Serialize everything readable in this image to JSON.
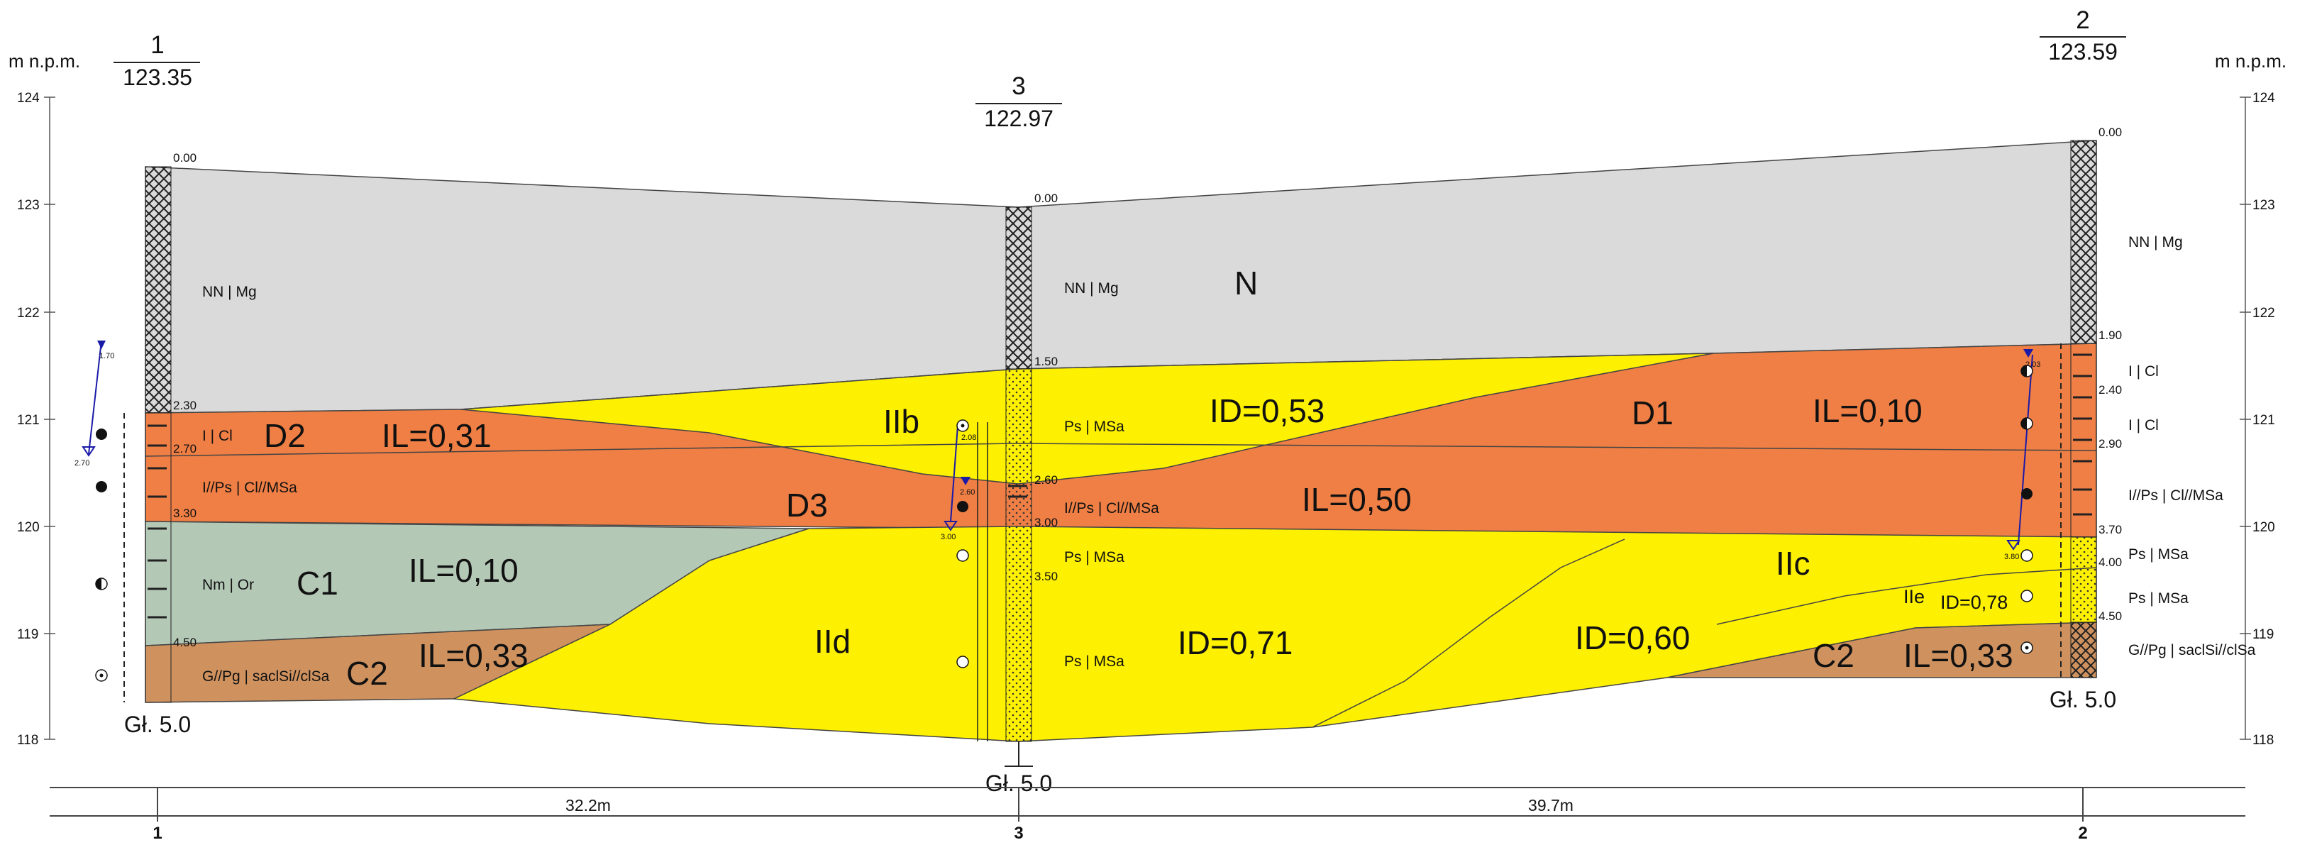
{
  "axis": {
    "unit_label": "m n.p.m.",
    "ticks": [
      "124",
      "123",
      "122",
      "121",
      "120",
      "119",
      "118"
    ]
  },
  "boreholes": {
    "b1": {
      "number": "1",
      "elevation": "123.35",
      "depth": "Gł. 5.0",
      "depths": [
        "0.00",
        "2.30",
        "2.70",
        "3.30",
        "4.50"
      ],
      "water_marks": [
        "1.70",
        "2.70"
      ],
      "soils": [
        "NN | Mg",
        "I | Cl",
        "I//Ps | Cl//MSa",
        "Nm | Or",
        "G//Pg | saclSi//clSa"
      ]
    },
    "b3": {
      "number": "3",
      "elevation": "122.97",
      "depth": "Gł. 5.0",
      "depths": [
        "0.00",
        "1.50",
        "2.60",
        "3.00",
        "3.50"
      ],
      "water_marks": [
        "2.08",
        "2.60",
        "3.00"
      ],
      "soils": [
        "NN | Mg",
        "Ps | MSa",
        "I//Ps | Cl//MSa",
        "Ps | MSa",
        "Ps | MSa"
      ]
    },
    "b2": {
      "number": "2",
      "elevation": "123.59",
      "depth": "Gł. 5.0",
      "depths": [
        "0.00",
        "1.90",
        "2.40",
        "2.90",
        "3.70",
        "4.00",
        "4.50"
      ],
      "water_marks": [
        "2.03",
        "3.80"
      ],
      "soils": [
        "NN | Mg",
        "I | Cl",
        "I | Cl",
        "I//Ps | Cl//MSa",
        "Ps | MSa",
        "Ps | MSa",
        "G//Pg | saclSi//clSa"
      ]
    }
  },
  "layers": {
    "N": "N",
    "D1": "D1",
    "D1_il": "IL=0,10",
    "D2": "D2",
    "D2_il": "IL=0,31",
    "D3": "D3",
    "D3_il": "IL=0,50",
    "C1": "C1",
    "C1_il": "IL=0,10",
    "C2a": "C2",
    "C2a_il": "IL=0,33",
    "C2b": "C2",
    "C2b_il": "IL=0,33",
    "IIb": "IIb",
    "IIb_id": "ID=0,53",
    "IIc": "IIc",
    "IIc_id": "ID=0,60",
    "IId": "IId",
    "IId_id": "ID=0,71",
    "IIe": "IIe",
    "IIe_id": "ID=0,78"
  },
  "distances": {
    "d13": "32.2m",
    "d32": "39.7m"
  },
  "colors": {
    "fill": "#d9dad9",
    "cohesive": "#ef7f45",
    "sand": "#fdf000",
    "organic": "#b4c8b6",
    "gravel": "#cf925f",
    "water": "#1a1aa8"
  }
}
